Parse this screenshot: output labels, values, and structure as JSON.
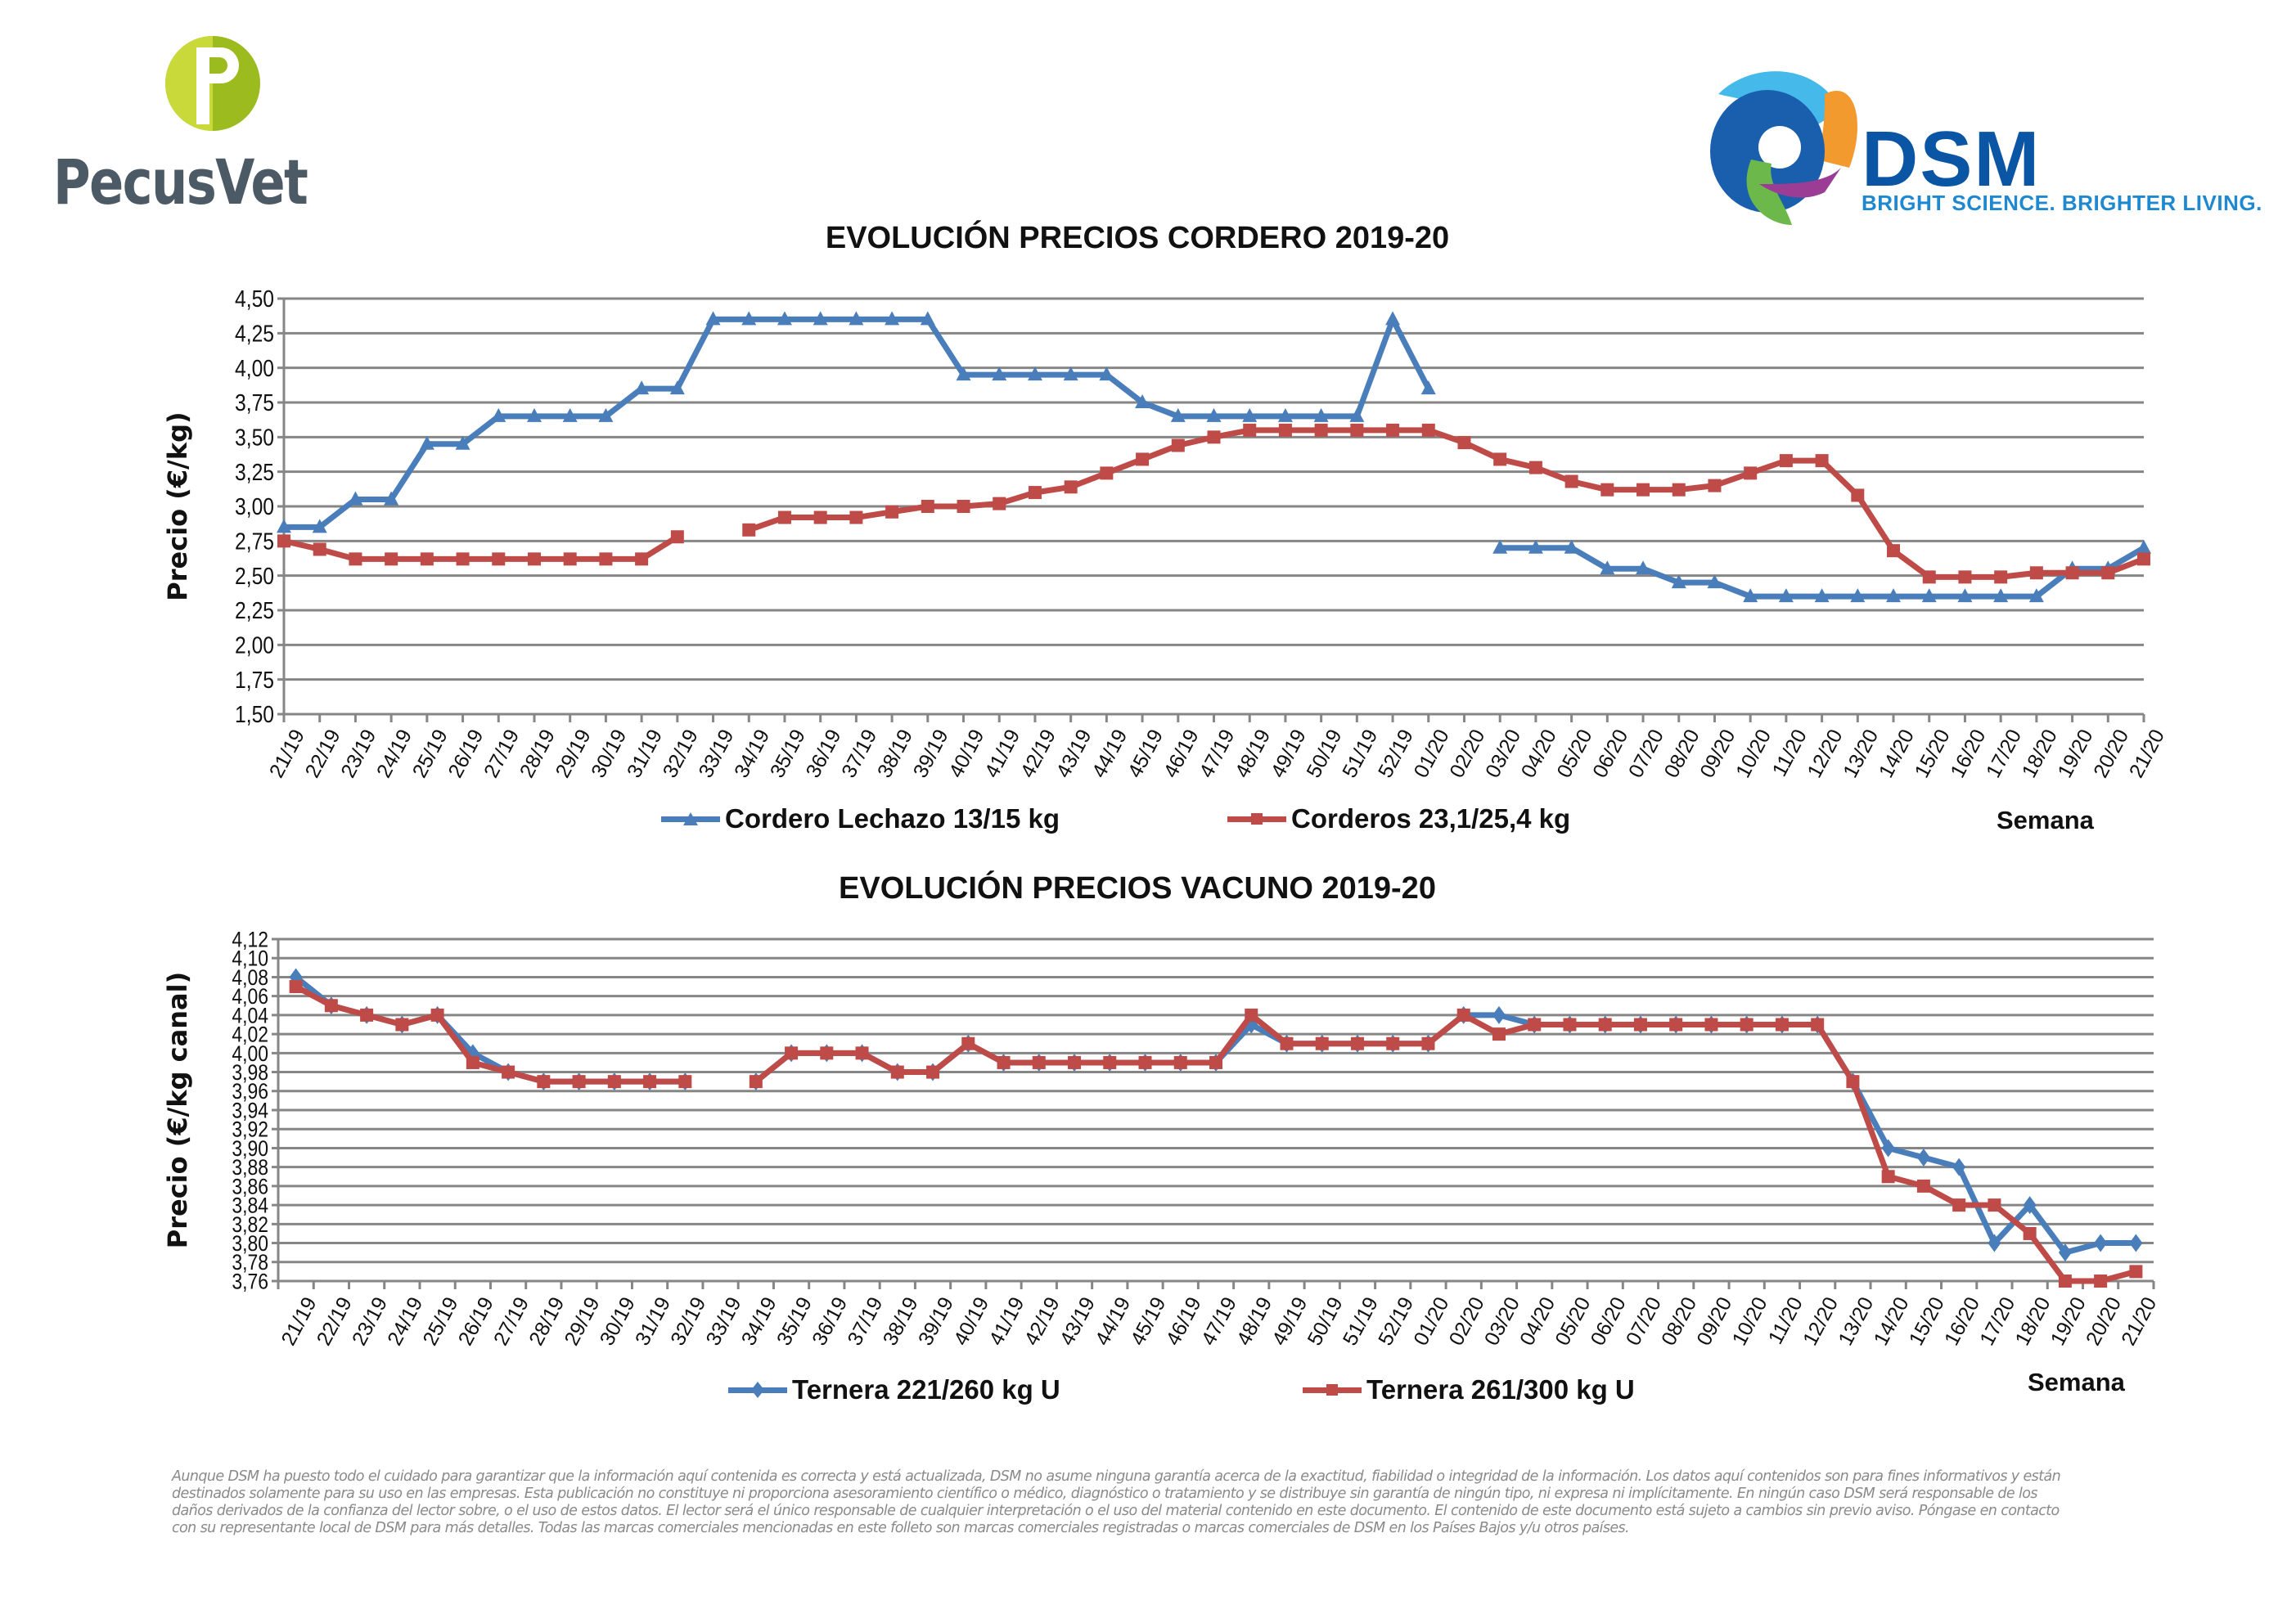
{
  "header": {
    "left_logo_text": "PecusVet",
    "right_logo_text": "DSM",
    "right_logo_tagline": "BRIGHT SCIENCE. BRIGHTER LIVING."
  },
  "colors": {
    "blue": "#4a7ebb",
    "red": "#be4b48",
    "grid": "#868686"
  },
  "chart_data": [
    {
      "type": "line",
      "title": "EVOLUCIÓN PRECIOS CORDERO 2019-20",
      "xlabel": "Semana",
      "ylabel": "Precio (€/kg)",
      "ylim": [
        1.5,
        4.5
      ],
      "ytick_step": 0.25,
      "yticks": [
        "1,50",
        "1,75",
        "2,00",
        "2,25",
        "2,50",
        "2,75",
        "3,00",
        "3,25",
        "3,50",
        "3,75",
        "4,00",
        "4,25",
        "4,50"
      ],
      "grid": true,
      "legend_position": "bottom",
      "categories": [
        "21/19",
        "22/19",
        "23/19",
        "24/19",
        "25/19",
        "26/19",
        "27/19",
        "28/19",
        "29/19",
        "30/19",
        "31/19",
        "32/19",
        "33/19",
        "34/19",
        "35/19",
        "36/19",
        "37/19",
        "38/19",
        "39/19",
        "40/19",
        "41/19",
        "42/19",
        "43/19",
        "44/19",
        "45/19",
        "46/19",
        "47/19",
        "48/19",
        "49/19",
        "50/19",
        "51/19",
        "52/19",
        "01/20",
        "02/20",
        "03/20",
        "04/20",
        "05/20",
        "06/20",
        "07/20",
        "08/20",
        "09/20",
        "10/20",
        "11/20",
        "12/20",
        "13/20",
        "14/20",
        "15/20",
        "16/20",
        "17/20",
        "18/20",
        "19/20",
        "20/20",
        "21/20"
      ],
      "series": [
        {
          "name": "Cordero Lechazo 13/15 kg",
          "color": "#4a7ebb",
          "marker": "triangle",
          "values": [
            2.85,
            2.85,
            3.05,
            3.05,
            3.45,
            3.45,
            3.65,
            3.65,
            3.65,
            3.65,
            3.85,
            3.85,
            4.35,
            4.35,
            4.35,
            4.35,
            4.35,
            4.35,
            4.35,
            3.95,
            3.95,
            3.95,
            3.95,
            3.95,
            3.75,
            3.65,
            3.65,
            3.65,
            3.65,
            3.65,
            3.65,
            4.35,
            3.85,
            null,
            2.7,
            2.7,
            2.7,
            2.55,
            2.55,
            2.45,
            2.45,
            2.35,
            2.35,
            2.35,
            2.35,
            2.35,
            2.35,
            2.35,
            2.35,
            2.35,
            2.55,
            2.55,
            2.7
          ]
        },
        {
          "name": "Corderos 23,1/25,4 kg",
          "color": "#be4b48",
          "marker": "square",
          "values": [
            2.75,
            2.69,
            2.62,
            2.62,
            2.62,
            2.62,
            2.62,
            2.62,
            2.62,
            2.62,
            2.62,
            2.78,
            null,
            2.83,
            2.92,
            2.92,
            2.92,
            2.96,
            3.0,
            3.0,
            3.02,
            3.1,
            3.14,
            3.24,
            3.34,
            3.44,
            3.5,
            3.55,
            3.55,
            3.55,
            3.55,
            3.55,
            3.55,
            3.46,
            3.34,
            3.28,
            3.18,
            3.12,
            3.12,
            3.12,
            3.15,
            3.24,
            3.33,
            3.33,
            3.08,
            2.68,
            2.49,
            2.49,
            2.49,
            2.52,
            2.52,
            2.52,
            2.62
          ]
        }
      ]
    },
    {
      "type": "line",
      "title": "EVOLUCIÓN PRECIOS VACUNO 2019-20",
      "xlabel": "Semana",
      "ylabel": "Precio (€/kg canal)",
      "ylim": [
        3.76,
        4.12
      ],
      "ytick_step": 0.02,
      "yticks": [
        "3,76",
        "3,78",
        "3,80",
        "3,82",
        "3,84",
        "3,86",
        "3,88",
        "3,90",
        "3,92",
        "3,94",
        "3,96",
        "3,98",
        "4,00",
        "4,02",
        "4,04",
        "4,06",
        "4,08",
        "4,10",
        "4,12"
      ],
      "grid": true,
      "legend_position": "bottom",
      "categories": [
        "21/19",
        "22/19",
        "23/19",
        "24/19",
        "25/19",
        "26/19",
        "27/19",
        "28/19",
        "29/19",
        "30/19",
        "31/19",
        "32/19",
        "33/19",
        "34/19",
        "35/19",
        "36/19",
        "37/19",
        "38/19",
        "39/19",
        "40/19",
        "41/19",
        "42/19",
        "43/19",
        "44/19",
        "45/19",
        "46/19",
        "47/19",
        "48/19",
        "49/19",
        "50/19",
        "51/19",
        "52/19",
        "01/20",
        "02/20",
        "03/20",
        "04/20",
        "05/20",
        "06/20",
        "07/20",
        "08/20",
        "09/20",
        "10/20",
        "11/20",
        "12/20",
        "13/20",
        "14/20",
        "15/20",
        "16/20",
        "17/20",
        "18/20",
        "19/20",
        "20/20",
        "21/20"
      ],
      "series": [
        {
          "name": "Ternera 221/260 kg U",
          "color": "#4a7ebb",
          "marker": "diamond",
          "values": [
            4.08,
            4.05,
            4.04,
            4.03,
            4.04,
            4.0,
            3.98,
            3.97,
            3.97,
            3.97,
            3.97,
            3.97,
            null,
            3.97,
            4.0,
            4.0,
            4.0,
            3.98,
            3.98,
            4.01,
            3.99,
            3.99,
            3.99,
            3.99,
            3.99,
            3.99,
            3.99,
            4.03,
            4.01,
            4.01,
            4.01,
            4.01,
            4.01,
            4.04,
            4.04,
            4.03,
            4.03,
            4.03,
            4.03,
            4.03,
            4.03,
            4.03,
            4.03,
            4.03,
            3.97,
            3.9,
            3.89,
            3.88,
            3.8,
            3.84,
            3.79,
            3.8,
            3.8
          ]
        },
        {
          "name": "Ternera 261/300 kg U",
          "color": "#be4b48",
          "marker": "square",
          "values": [
            4.07,
            4.05,
            4.04,
            4.03,
            4.04,
            3.99,
            3.98,
            3.97,
            3.97,
            3.97,
            3.97,
            3.97,
            null,
            3.97,
            4.0,
            4.0,
            4.0,
            3.98,
            3.98,
            4.01,
            3.99,
            3.99,
            3.99,
            3.99,
            3.99,
            3.99,
            3.99,
            4.04,
            4.01,
            4.01,
            4.01,
            4.01,
            4.01,
            4.04,
            4.02,
            4.03,
            4.03,
            4.03,
            4.03,
            4.03,
            4.03,
            4.03,
            4.03,
            4.03,
            3.97,
            3.87,
            3.86,
            3.84,
            3.84,
            3.81,
            3.76,
            3.76,
            3.77
          ]
        }
      ]
    }
  ],
  "disclaimer_lines": [
    "Aunque DSM ha puesto todo el cuidado para garantizar que la información aquí contenida es correcta y está actualizada, DSM no asume ninguna garantía acerca de la exactitud, fiabilidad o integridad de la información. Los datos aquí contenidos son para fines informativos y están",
    "destinados solamente para su uso en las empresas. Esta publicación no constituye ni proporciona asesoramiento científico o médico, diagnóstico o tratamiento y se distribuye sin garantía de ningún tipo, ni expresa ni implícitamente. En ningún caso DSM será responsable de los",
    "daños derivados de la confianza del lector sobre, o el uso de estos datos. El lector será el único responsable de cualquier interpretación o el uso del material contenido en este documento. El contenido de este documento está sujeto a cambios sin previo aviso. Póngase en contacto",
    "con su representante local de DSM para más detalles. Todas las marcas comerciales mencionadas en este folleto son marcas comerciales registradas o marcas comerciales de DSM en los Países Bajos y/u otros países."
  ]
}
